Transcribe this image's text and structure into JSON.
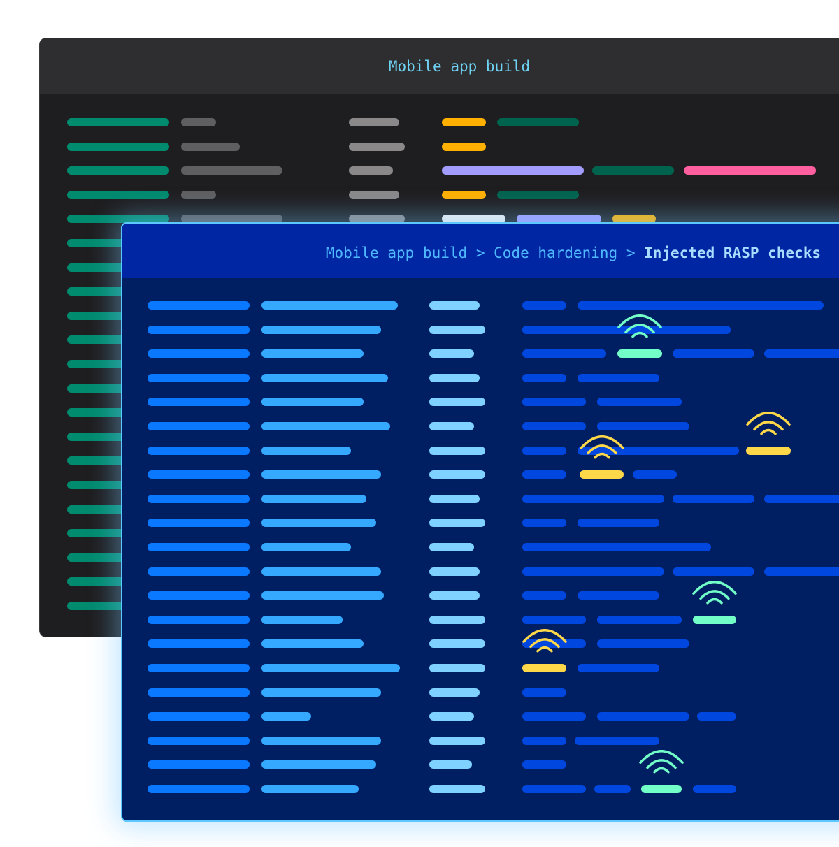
{
  "back_window": {
    "title": "Mobile app build"
  },
  "front_window": {
    "breadcrumb": [
      "Mobile app build",
      "Code hardening",
      "Injected RASP checks"
    ],
    "separator": ">"
  },
  "colors": {
    "dark_col1": "#008a6e",
    "dark_gray": "#5f5e60",
    "dark_lightgray": "#8a8889",
    "amber": "#ffb000",
    "dark_green": "#00634d",
    "lavender": "#a39cff",
    "pink": "#ff5f9e",
    "white": "#f2eff0",
    "blue_col1": "#0a78ff",
    "blue_col2": "#35a9ff",
    "blue_col3": "#7fd2ff",
    "blue_col4": "#0047e0",
    "rasp_green": "#72ffc8",
    "rasp_yellow": "#ffd84a"
  },
  "rasp_markers": [
    {
      "status": "green",
      "icon": "signal-icon"
    },
    {
      "status": "yellow",
      "icon": "signal-icon"
    },
    {
      "status": "yellow",
      "icon": "signal-icon"
    },
    {
      "status": "green",
      "icon": "signal-icon"
    },
    {
      "status": "yellow",
      "icon": "signal-icon"
    },
    {
      "status": "green",
      "icon": "signal-icon"
    }
  ]
}
